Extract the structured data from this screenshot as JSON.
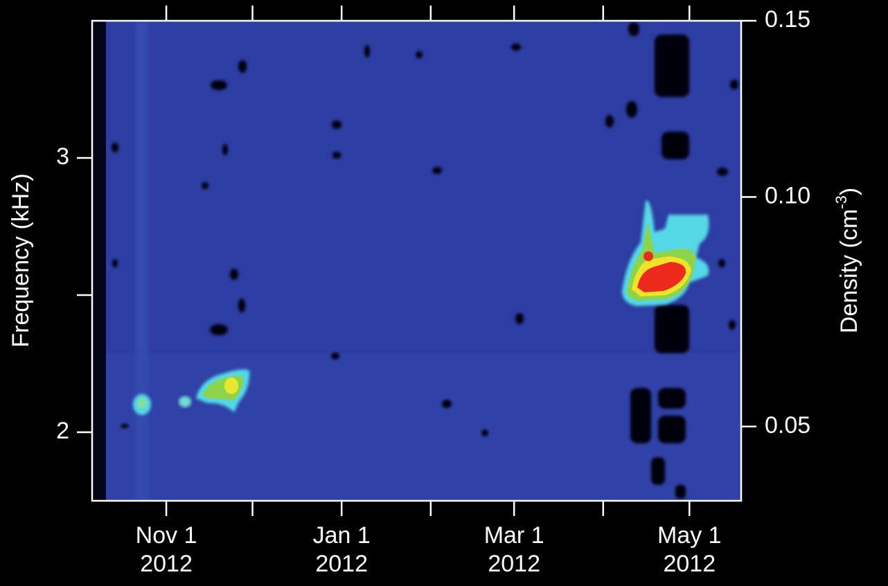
{
  "chart_data": {
    "type": "spectrogram",
    "ylabel": "Frequency (kHz)",
    "y2label": [
      "Density (cm",
      "-3",
      ")"
    ],
    "xlim": [
      5.2,
      231
    ],
    "xticks": [
      {
        "value": 31,
        "label": "Nov 1",
        "label2": "2012"
      },
      {
        "value": 92,
        "label": "Jan 1",
        "label2": "2012"
      },
      {
        "value": 152,
        "label": "Mar 1",
        "label2": "2012"
      },
      {
        "value": 213,
        "label": "May 1",
        "label2": "2012"
      }
    ],
    "xminor_ticks": [
      61,
      123,
      183
    ],
    "ylim": [
      1.75,
      3.5
    ],
    "yticks": [
      2,
      3
    ],
    "yminor_ticks": [
      2.5
    ],
    "y2lim": [
      0.0375,
      0.15
    ],
    "y2scale": "sqrt",
    "y2ticks": [
      {
        "value": 0.05,
        "label": "0.05"
      },
      {
        "value": 0.1,
        "label": "0.10"
      },
      {
        "value": 0.15,
        "label": "0.15"
      }
    ]
  }
}
